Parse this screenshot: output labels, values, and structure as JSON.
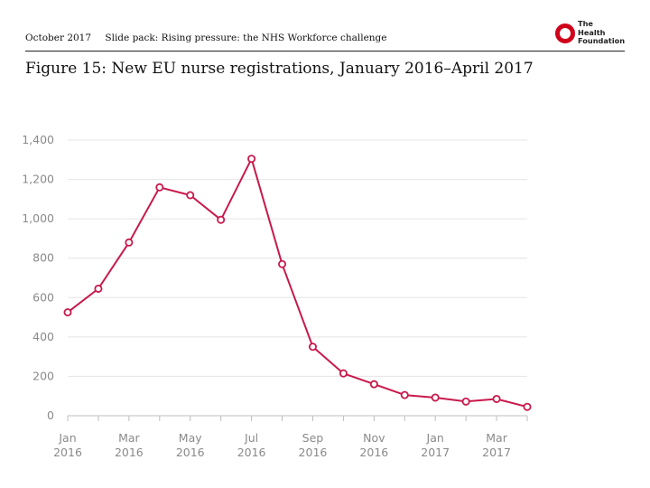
{
  "header": {
    "date": "October 2017",
    "slide_pack": "Slide pack: Rising pressure: the NHS Workforce challenge"
  },
  "logo": {
    "line1": "The",
    "line2": "Health",
    "line3": "Foundation",
    "color": "#d0021b"
  },
  "title": "Figure 15: New EU nurse registrations, January 2016–April 2017",
  "chart_data": {
    "type": "line",
    "title": "",
    "xlabel": "",
    "ylabel": "",
    "ylim": [
      0,
      1400
    ],
    "y_ticks": [
      0,
      200,
      400,
      600,
      800,
      1000,
      1200,
      1400
    ],
    "y_tick_labels": [
      "0",
      "200",
      "400",
      "600",
      "800",
      "1,000",
      "1,200",
      "1,400"
    ],
    "x": [
      "Jan 2016",
      "Feb 2016",
      "Mar 2016",
      "Apr 2016",
      "May 2016",
      "Jun 2016",
      "Jul 2016",
      "Aug 2016",
      "Sep 2016",
      "Oct 2016",
      "Nov 2016",
      "Dec 2016",
      "Jan 2017",
      "Feb 2017",
      "Mar 2017",
      "Apr 2017"
    ],
    "x_tick_labels": [
      {
        "index": 0,
        "month": "Jan",
        "year": "2016"
      },
      {
        "index": 2,
        "month": "Mar",
        "year": "2016"
      },
      {
        "index": 4,
        "month": "May",
        "year": "2016"
      },
      {
        "index": 6,
        "month": "Jul",
        "year": "2016"
      },
      {
        "index": 8,
        "month": "Sep",
        "year": "2016"
      },
      {
        "index": 10,
        "month": "Nov",
        "year": "2016"
      },
      {
        "index": 12,
        "month": "Jan",
        "year": "2017"
      },
      {
        "index": 14,
        "month": "Mar",
        "year": "2017"
      }
    ],
    "series": [
      {
        "values": [
          525,
          645,
          880,
          1160,
          1120,
          995,
          1305,
          770,
          350,
          215,
          160,
          105,
          92,
          72,
          85,
          45
        ],
        "color": "#c8194b"
      }
    ],
    "grid": true,
    "legend": "none"
  }
}
